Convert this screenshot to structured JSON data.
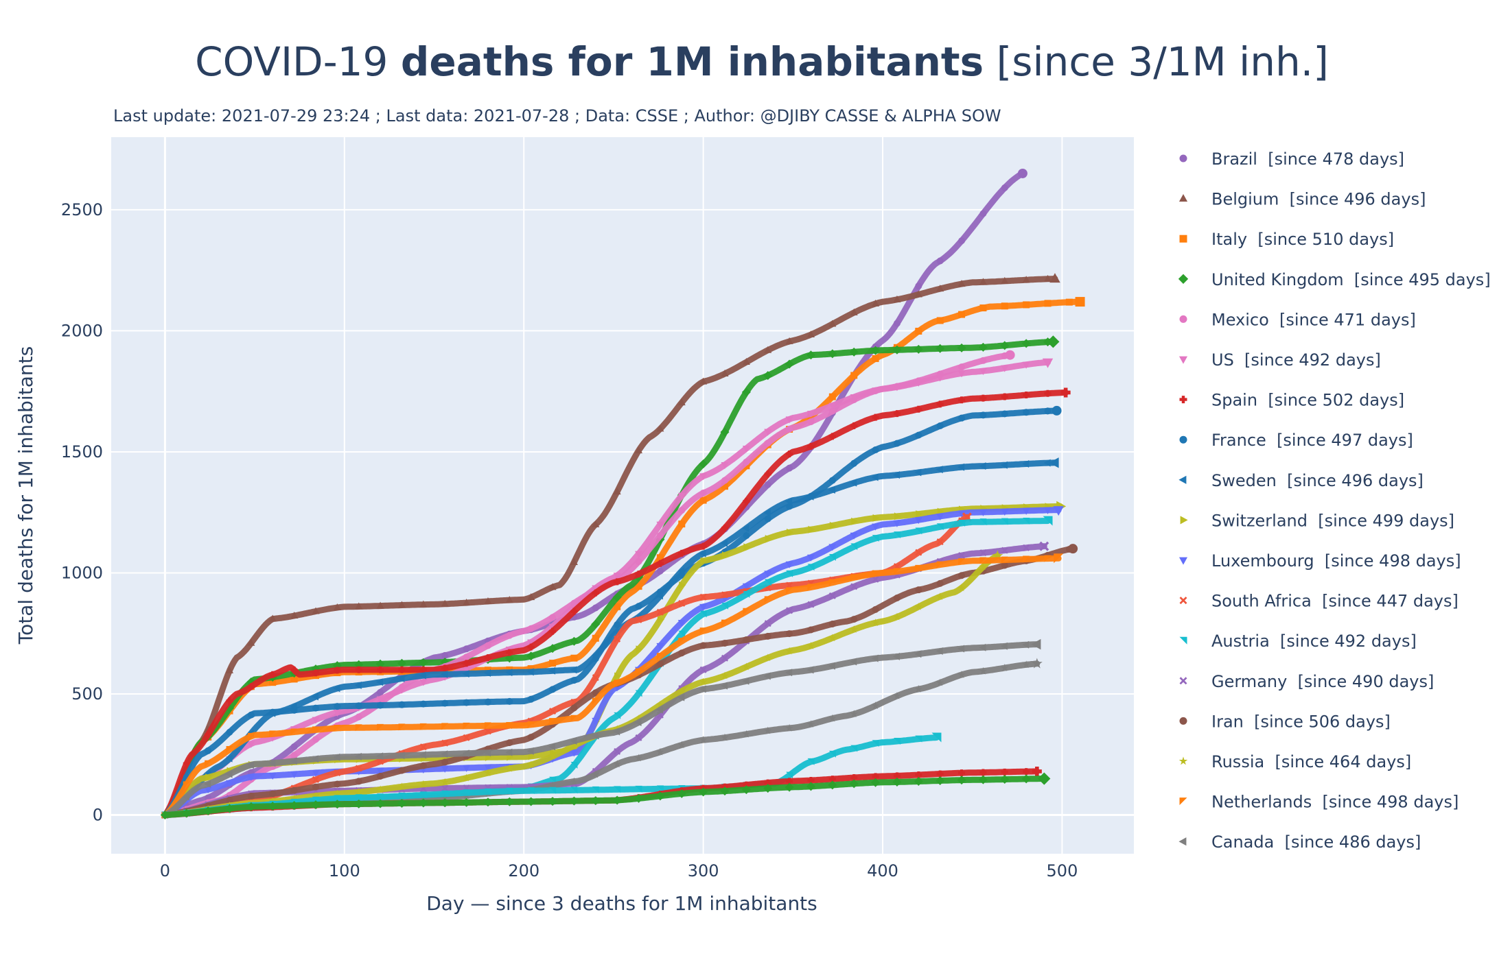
{
  "chart_data": {
    "type": "line",
    "title": {
      "parts": [
        {
          "text": "COVID-19 ",
          "bold": false
        },
        {
          "text": "deaths for 1M inhabitants",
          "bold": true
        },
        {
          "text": " [since 3/1M inh.]",
          "bold": false
        }
      ]
    },
    "subtitle": "Last update: 2021-07-29 23:24 ; Last data: 2021-07-28 ; Data: CSSE ; Author: @DJIBY CASSE & ALPHA SOW",
    "xlabel": "Day — since 3 deaths  for 1M inhabitants",
    "ylabel": "Total deaths  for 1M inhabitants",
    "xlim": [
      -30,
      540
    ],
    "ylim": [
      -160,
      2800
    ],
    "xticks": [
      0,
      100,
      200,
      300,
      400,
      500
    ],
    "yticks": [
      0,
      500,
      1000,
      1500,
      2000,
      2500
    ],
    "grid": true,
    "legend_position": "right",
    "colors": {
      "plot_bg": "#e5ecf6",
      "grid": "#ffffff",
      "text": "#2a3f5f"
    },
    "series": [
      {
        "name": "Brazil",
        "legend": "Brazil  [since 478 days]",
        "marker": "circle",
        "color": "#9467bd",
        "x": [
          0,
          20,
          50,
          100,
          150,
          200,
          230,
          260,
          300,
          350,
          400,
          430,
          478
        ],
        "y": [
          0,
          60,
          180,
          420,
          650,
          760,
          820,
          940,
          1120,
          1440,
          1960,
          2280,
          2650
        ]
      },
      {
        "name": "Belgium",
        "legend": "Belgium  [since 496 days]",
        "marker": "triangle-up",
        "color": "#8c564b",
        "x": [
          0,
          20,
          40,
          60,
          100,
          150,
          200,
          220,
          240,
          270,
          300,
          350,
          400,
          450,
          496
        ],
        "y": [
          0,
          300,
          650,
          810,
          860,
          870,
          890,
          950,
          1200,
          1560,
          1790,
          1960,
          2120,
          2200,
          2215
        ]
      },
      {
        "name": "Italy",
        "legend": "Italy  [since 510 days]",
        "marker": "square",
        "color": "#ff7f0e",
        "x": [
          0,
          20,
          50,
          100,
          200,
          230,
          260,
          300,
          350,
          400,
          430,
          460,
          510
        ],
        "y": [
          0,
          300,
          540,
          590,
          600,
          650,
          920,
          1300,
          1600,
          1900,
          2040,
          2100,
          2120
        ]
      },
      {
        "name": "United Kingdom",
        "legend": "United Kingdom  [since 495 days]",
        "marker": "diamond",
        "color": "#2ca02c",
        "x": [
          0,
          20,
          50,
          100,
          150,
          200,
          230,
          260,
          300,
          330,
          360,
          400,
          450,
          495
        ],
        "y": [
          0,
          300,
          560,
          620,
          630,
          650,
          720,
          950,
          1450,
          1800,
          1900,
          1920,
          1930,
          1955
        ]
      },
      {
        "name": "Mexico",
        "legend": "Mexico  [since 471 days]",
        "marker": "circle",
        "color": "#e377c2",
        "x": [
          0,
          30,
          60,
          100,
          150,
          200,
          250,
          300,
          350,
          400,
          471
        ],
        "y": [
          0,
          60,
          200,
          380,
          600,
          760,
          960,
          1330,
          1600,
          1760,
          1900
        ]
      },
      {
        "name": "US",
        "legend": "US  [since 492 days]",
        "marker": "triangle-down",
        "color": "#e377c2",
        "x": [
          0,
          20,
          50,
          100,
          150,
          200,
          250,
          300,
          350,
          400,
          450,
          492
        ],
        "y": [
          0,
          150,
          300,
          430,
          560,
          700,
          980,
          1400,
          1640,
          1760,
          1830,
          1870
        ]
      },
      {
        "name": "Spain",
        "legend": "Spain  [since 502 days]",
        "marker": "cross",
        "color": "#d62728",
        "x": [
          0,
          15,
          40,
          60,
          70,
          75,
          100,
          150,
          200,
          250,
          300,
          350,
          400,
          450,
          502
        ],
        "y": [
          0,
          250,
          500,
          580,
          610,
          580,
          600,
          600,
          680,
          960,
          1110,
          1500,
          1650,
          1720,
          1745
        ]
      },
      {
        "name": "France",
        "legend": "France  [since 497 days]",
        "marker": "circle",
        "color": "#1f77b4",
        "x": [
          0,
          20,
          50,
          100,
          200,
          230,
          260,
          300,
          350,
          400,
          450,
          497
        ],
        "y": [
          0,
          250,
          420,
          450,
          470,
          560,
          850,
          1040,
          1280,
          1520,
          1650,
          1670
        ]
      },
      {
        "name": "Sweden",
        "legend": "Sweden  [since 496 days]",
        "marker": "triangle-left",
        "color": "#1f77b4",
        "x": [
          0,
          30,
          60,
          100,
          150,
          200,
          230,
          260,
          300,
          350,
          400,
          450,
          496
        ],
        "y": [
          0,
          200,
          420,
          530,
          580,
          590,
          600,
          800,
          1080,
          1300,
          1400,
          1440,
          1455
        ]
      },
      {
        "name": "Switzerland",
        "legend": "Switzerland  [since 499 days]",
        "marker": "triangle-right",
        "color": "#bcbd22",
        "x": [
          0,
          20,
          50,
          100,
          200,
          230,
          260,
          300,
          350,
          400,
          450,
          499
        ],
        "y": [
          0,
          150,
          210,
          230,
          240,
          270,
          660,
          1050,
          1170,
          1230,
          1265,
          1275
        ]
      },
      {
        "name": "Luxembourg",
        "legend": "Luxembourg  [since 498 days]",
        "marker": "triangle-down",
        "color": "#636efa",
        "x": [
          0,
          20,
          50,
          100,
          200,
          230,
          250,
          300,
          350,
          400,
          450,
          498
        ],
        "y": [
          0,
          100,
          160,
          180,
          200,
          260,
          520,
          860,
          1040,
          1200,
          1250,
          1260
        ]
      },
      {
        "name": "South Africa",
        "legend": "South Africa  [since 447 days]",
        "marker": "x",
        "color": "#ef553b",
        "x": [
          0,
          50,
          100,
          150,
          200,
          230,
          260,
          300,
          350,
          400,
          430,
          447
        ],
        "y": [
          0,
          60,
          180,
          290,
          380,
          470,
          800,
          900,
          950,
          1000,
          1120,
          1230
        ]
      },
      {
        "name": "Austria",
        "legend": "Austria  [since 492 days]",
        "marker": "triangle-ne",
        "color": "#17becf",
        "x": [
          0,
          50,
          100,
          150,
          200,
          220,
          250,
          300,
          350,
          400,
          450,
          492
        ],
        "y": [
          0,
          30,
          70,
          80,
          110,
          150,
          400,
          830,
          1000,
          1150,
          1210,
          1215
        ]
      },
      {
        "name": "Germany",
        "legend": "Germany  [since 490 days]",
        "marker": "x",
        "color": "#9467bd",
        "x": [
          0,
          50,
          100,
          150,
          200,
          230,
          260,
          300,
          350,
          400,
          450,
          490
        ],
        "y": [
          0,
          90,
          100,
          110,
          115,
          130,
          300,
          600,
          850,
          980,
          1080,
          1110
        ]
      },
      {
        "name": "Iran",
        "legend": "Iran  [since 506 days]",
        "marker": "circle",
        "color": "#8c564b",
        "x": [
          0,
          50,
          100,
          150,
          200,
          250,
          300,
          350,
          380,
          420,
          450,
          480,
          506
        ],
        "y": [
          0,
          80,
          130,
          210,
          310,
          540,
          700,
          750,
          800,
          930,
          1000,
          1050,
          1100
        ]
      },
      {
        "name": "Russia",
        "legend": "Russia  [since 464 days]",
        "marker": "star",
        "color": "#bcbd22",
        "x": [
          0,
          50,
          100,
          150,
          200,
          250,
          300,
          350,
          400,
          440,
          464
        ],
        "y": [
          0,
          50,
          90,
          130,
          200,
          350,
          550,
          680,
          800,
          920,
          1070
        ]
      },
      {
        "name": "Netherlands",
        "legend": "Netherlands  [since 498 days]",
        "marker": "triangle-nw",
        "color": "#ff7f0e",
        "x": [
          0,
          20,
          50,
          100,
          200,
          230,
          250,
          300,
          350,
          400,
          450,
          498
        ],
        "y": [
          0,
          200,
          330,
          360,
          370,
          400,
          540,
          760,
          930,
          1000,
          1050,
          1060
        ]
      },
      {
        "name": "Canada",
        "legend": "Canada  [since 486 days]",
        "marker": "triangle-left",
        "color": "#7f7f7f",
        "x": [
          0,
          20,
          50,
          100,
          200,
          250,
          300,
          350,
          400,
          450,
          486
        ],
        "y": [
          0,
          120,
          210,
          240,
          260,
          340,
          520,
          590,
          650,
          690,
          705
        ]
      },
      {
        "name": "",
        "legend": "",
        "marker": "star",
        "color": "#7f7f7f",
        "x": [
          0,
          50,
          100,
          150,
          200,
          230,
          260,
          300,
          350,
          380,
          420,
          450,
          486
        ],
        "y": [
          0,
          40,
          60,
          70,
          100,
          140,
          230,
          310,
          360,
          410,
          520,
          590,
          625
        ]
      },
      {
        "name": "",
        "legend": "",
        "marker": "triangle-ne",
        "color": "#17becf",
        "x": [
          0,
          50,
          100,
          200,
          300,
          340,
          360,
          380,
          400,
          430
        ],
        "y": [
          0,
          40,
          70,
          100,
          110,
          130,
          220,
          270,
          300,
          320
        ]
      },
      {
        "name": "",
        "legend": "",
        "marker": "cross",
        "color": "#d62728",
        "x": [
          0,
          50,
          100,
          150,
          200,
          250,
          300,
          350,
          400,
          450,
          486
        ],
        "y": [
          0,
          30,
          45,
          50,
          55,
          60,
          110,
          140,
          160,
          175,
          180
        ]
      },
      {
        "name": "",
        "legend": "",
        "marker": "diamond",
        "color": "#2ca02c",
        "x": [
          0,
          50,
          100,
          150,
          200,
          250,
          300,
          350,
          400,
          450,
          490
        ],
        "y": [
          0,
          35,
          45,
          50,
          55,
          60,
          95,
          115,
          135,
          145,
          150
        ]
      }
    ]
  }
}
